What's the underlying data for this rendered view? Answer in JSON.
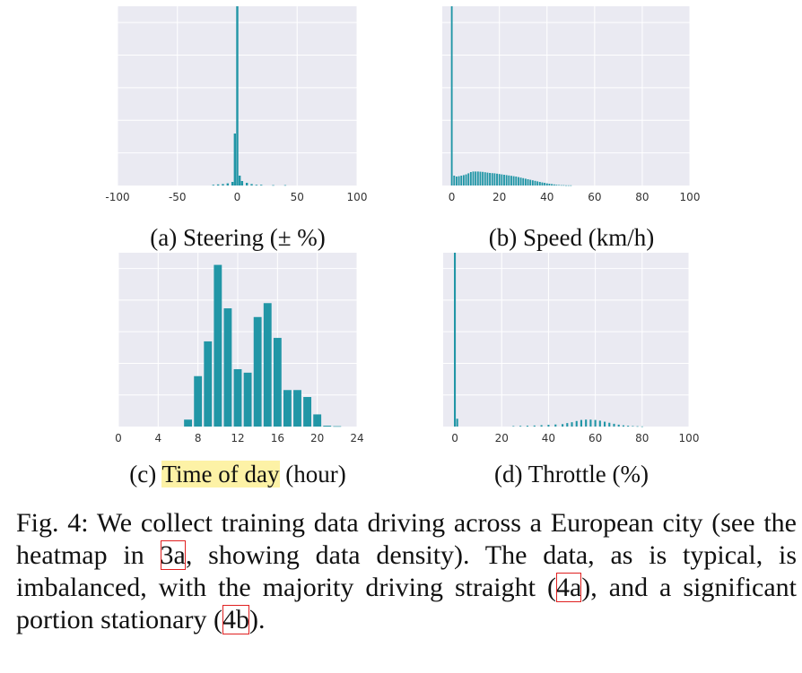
{
  "chart_data": [
    {
      "type": "bar",
      "id": "steering",
      "caption_label": "(a)",
      "caption_text": "Steering (± %)",
      "xlim": [
        -100,
        100
      ],
      "xticks": [
        -100,
        -50,
        0,
        50,
        100
      ],
      "tick_labels": [
        "-100",
        "-50",
        "0",
        "50",
        "100"
      ],
      "ylim": [
        0,
        1.0
      ],
      "x": [
        -20,
        -16,
        -12,
        -8,
        -4,
        -2,
        0,
        2,
        4,
        8,
        12,
        16,
        20,
        30,
        40
      ],
      "values": [
        0.004,
        0.006,
        0.008,
        0.012,
        0.02,
        0.29,
        1.0,
        0.055,
        0.025,
        0.015,
        0.008,
        0.004,
        0.004,
        0.002,
        0.002
      ],
      "bar_width": 1.8
    },
    {
      "type": "bar",
      "id": "speed",
      "caption_label": "(b)",
      "caption_text": "Speed (km/h)",
      "xlim": [
        -4,
        100
      ],
      "xticks": [
        0,
        20,
        40,
        60,
        80,
        100
      ],
      "tick_labels": [
        "0",
        "20",
        "40",
        "60",
        "80",
        "100"
      ],
      "ylim": [
        0,
        1.0
      ],
      "x": [
        0,
        1,
        2,
        3,
        4,
        5,
        6,
        7,
        8,
        9,
        10,
        11,
        12,
        13,
        14,
        15,
        16,
        17,
        18,
        19,
        20,
        21,
        22,
        23,
        24,
        25,
        26,
        27,
        28,
        29,
        30,
        31,
        32,
        33,
        34,
        35,
        36,
        37,
        38,
        39,
        40,
        41,
        42,
        43,
        44,
        45,
        46,
        47,
        48,
        49,
        50
      ],
      "values": [
        1.0,
        0.055,
        0.05,
        0.052,
        0.055,
        0.058,
        0.062,
        0.068,
        0.075,
        0.078,
        0.078,
        0.078,
        0.077,
        0.076,
        0.074,
        0.072,
        0.07,
        0.069,
        0.068,
        0.066,
        0.064,
        0.062,
        0.06,
        0.058,
        0.056,
        0.054,
        0.052,
        0.05,
        0.047,
        0.044,
        0.041,
        0.038,
        0.035,
        0.032,
        0.029,
        0.026,
        0.023,
        0.02,
        0.017,
        0.015,
        0.012,
        0.01,
        0.008,
        0.006,
        0.004,
        0.003,
        0.002,
        0.002,
        0.001,
        0.001,
        0.001
      ],
      "bar_width": 0.7
    },
    {
      "type": "bar",
      "id": "time-of-day",
      "caption_label": "(c)",
      "caption_text": "Time of day",
      "caption_suffix": "(hour)",
      "xlim": [
        0,
        24
      ],
      "xticks": [
        0,
        4,
        8,
        12,
        16,
        20,
        24
      ],
      "tick_labels": [
        "0",
        "4",
        "8",
        "12",
        "16",
        "20",
        "24"
      ],
      "ylim": [
        0,
        1.0
      ],
      "x": [
        7,
        8,
        9,
        10,
        11,
        12,
        13,
        14,
        15,
        16,
        17,
        18,
        19,
        20,
        21,
        22
      ],
      "values": [
        0.04,
        0.29,
        0.49,
        0.93,
        0.68,
        0.33,
        0.31,
        0.63,
        0.71,
        0.51,
        0.21,
        0.21,
        0.17,
        0.07,
        0.005,
        0.002
      ],
      "bar_width": 0.8
    },
    {
      "type": "bar",
      "id": "throttle",
      "caption_label": "(d)",
      "caption_text": "Throttle (%)",
      "xlim": [
        -5,
        100
      ],
      "xticks": [
        0,
        20,
        40,
        60,
        80,
        100
      ],
      "tick_labels": [
        "0",
        "20",
        "40",
        "60",
        "80",
        "100"
      ],
      "ylim": [
        0,
        1.0
      ],
      "x": [
        0,
        1,
        25,
        28,
        31,
        34,
        37,
        40,
        43,
        46,
        48,
        50,
        52,
        54,
        56,
        58,
        60,
        62,
        64,
        66,
        68,
        70,
        72,
        74,
        76,
        78,
        80
      ],
      "values": [
        1.0,
        0.045,
        0.003,
        0.004,
        0.005,
        0.006,
        0.008,
        0.01,
        0.012,
        0.014,
        0.02,
        0.025,
        0.032,
        0.038,
        0.04,
        0.04,
        0.038,
        0.034,
        0.028,
        0.022,
        0.016,
        0.011,
        0.007,
        0.005,
        0.003,
        0.002,
        0.001
      ],
      "bar_width": 0.8
    }
  ],
  "figure_caption": {
    "label": "Fig. 4:",
    "part1": "We collect training data driving across a European city (see the heatmap in",
    "ref1": "3a",
    "part2": ", showing data density). The data, as is typical, is imbalanced, with the majority driving straight (",
    "ref2": "4a",
    "part3": "), and a significant portion stationary (",
    "ref3": "4b",
    "part4": ")."
  },
  "colors": {
    "bar": "#2196a6",
    "plot_bg": "#eaeaf2",
    "grid": "#ffffff"
  }
}
